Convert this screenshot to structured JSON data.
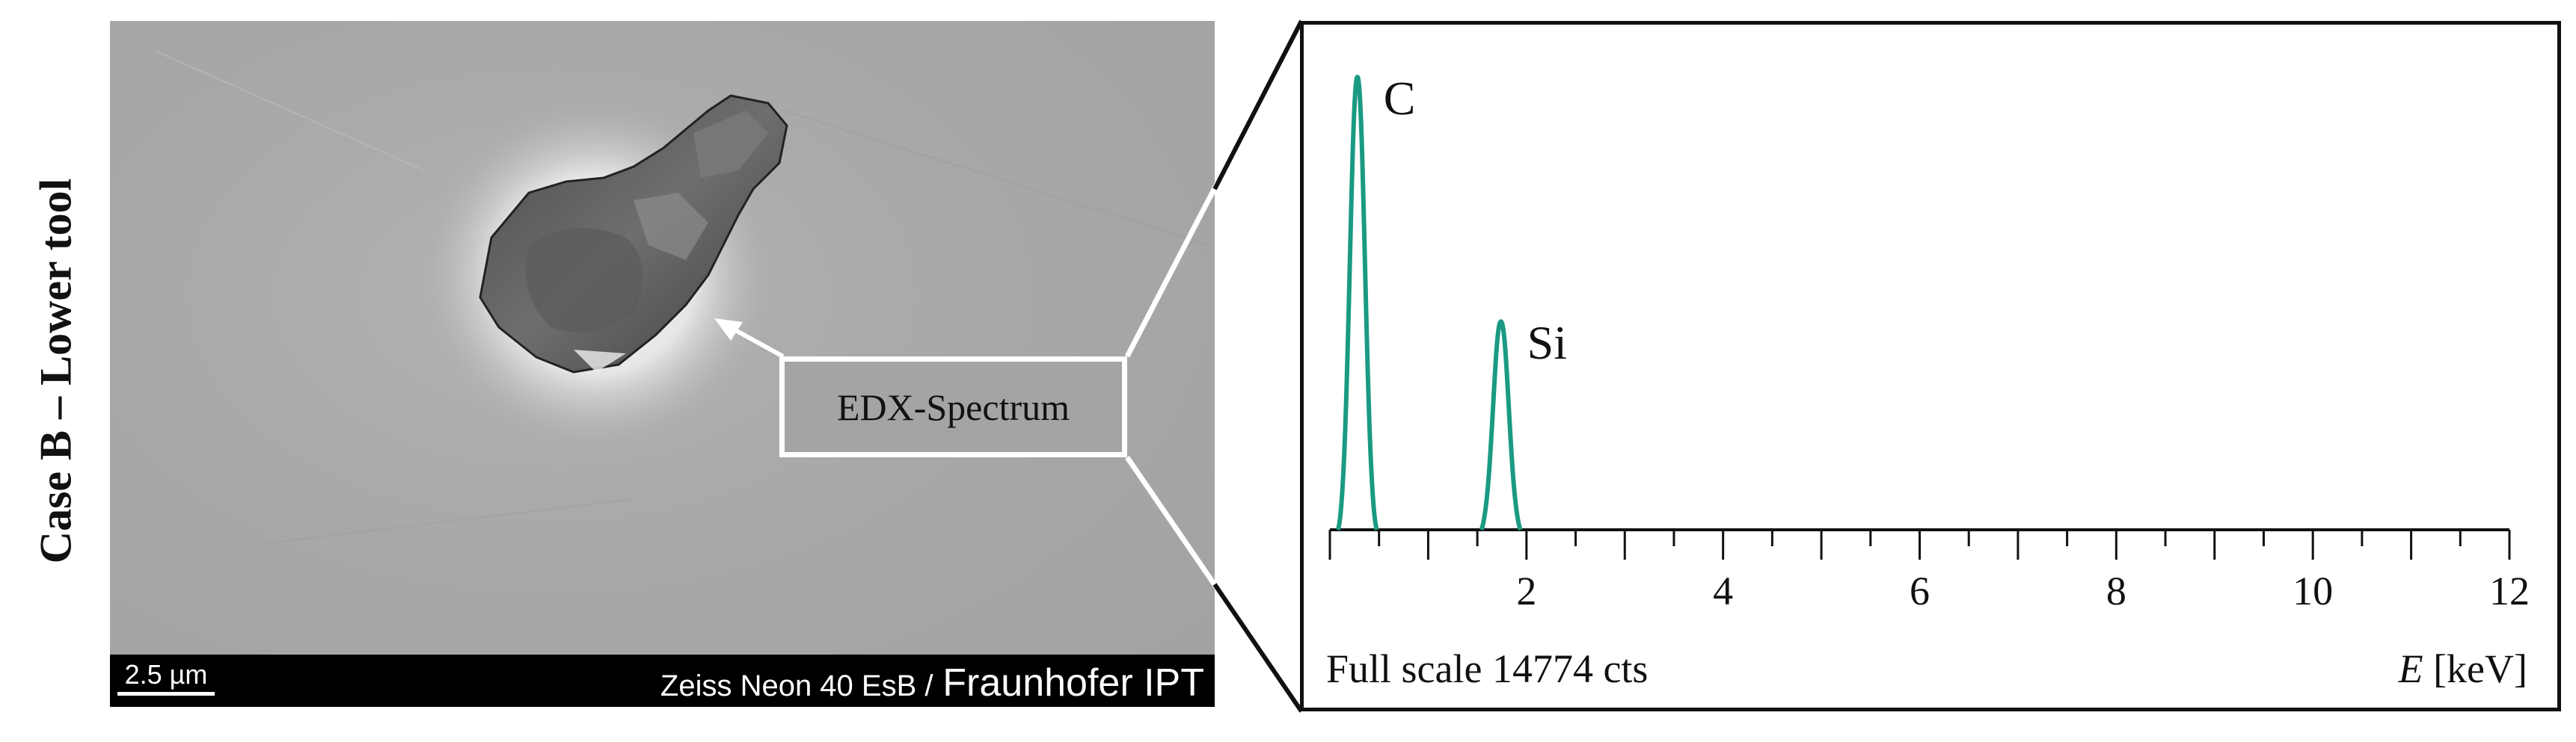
{
  "side_label": "Case B – Lower tool",
  "sem_image": {
    "scale_bar": "2.5 µm",
    "instrument": "Zeiss Neon 40 EsB /",
    "organization": "Fraunhofer IPT"
  },
  "callout": {
    "label": "EDX-Spectrum"
  },
  "spectrum": {
    "peaks": [
      {
        "label": "C",
        "energy_keV": 0.28,
        "relative_height": 1.0
      },
      {
        "label": "Si",
        "energy_keV": 1.74,
        "relative_height": 0.46
      }
    ],
    "x_axis": {
      "min": 0,
      "max": 12,
      "major_ticks": [
        2,
        4,
        6,
        8,
        10,
        12
      ]
    },
    "footer_left": "Full scale 14774 cts",
    "footer_right_symbol": "E",
    "footer_right_unit": "[keV]",
    "line_color": "#1a9a82"
  }
}
